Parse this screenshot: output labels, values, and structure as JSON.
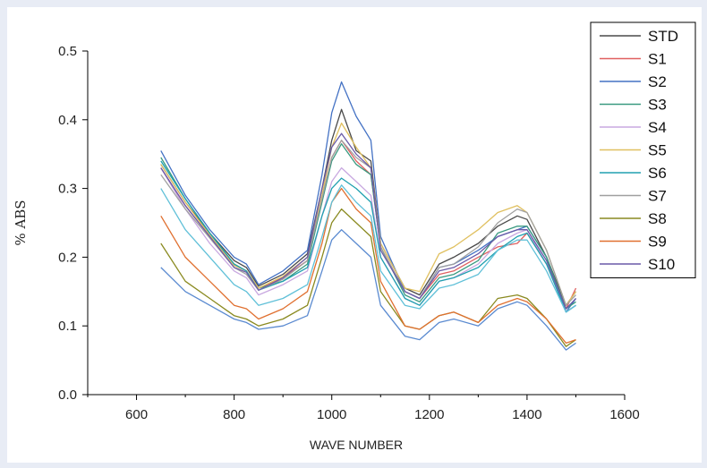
{
  "chart_data": {
    "type": "line",
    "xlabel": "WAVE NUMBER",
    "ylabel": "% ABS",
    "xlim": [
      500,
      1600
    ],
    "ylim": [
      0.0,
      0.5
    ],
    "xticks": [
      600,
      800,
      1000,
      1200,
      1400,
      1600
    ],
    "yticks": [
      "0.0",
      "0.1",
      "0.2",
      "0.3",
      "0.4",
      "0.5"
    ],
    "grid": false,
    "legend_position": "top-right",
    "x": [
      650,
      700,
      750,
      800,
      825,
      850,
      900,
      950,
      980,
      1000,
      1020,
      1050,
      1080,
      1100,
      1150,
      1180,
      1220,
      1250,
      1300,
      1340,
      1380,
      1400,
      1440,
      1480,
      1500
    ],
    "series": [
      {
        "name": "STD",
        "color": "#4a4a4a",
        "values": [
          0.335,
          0.28,
          0.235,
          0.195,
          0.185,
          0.158,
          0.175,
          0.205,
          0.3,
          0.37,
          0.415,
          0.355,
          0.34,
          0.22,
          0.155,
          0.145,
          0.19,
          0.2,
          0.22,
          0.245,
          0.26,
          0.255,
          0.2,
          0.13,
          0.15
        ]
      },
      {
        "name": "S1",
        "color": "#e06060",
        "values": [
          0.33,
          0.275,
          0.23,
          0.19,
          0.18,
          0.155,
          0.17,
          0.195,
          0.285,
          0.345,
          0.37,
          0.34,
          0.32,
          0.215,
          0.15,
          0.14,
          0.175,
          0.18,
          0.2,
          0.215,
          0.22,
          0.235,
          0.19,
          0.125,
          0.155
        ]
      },
      {
        "name": "S2",
        "color": "#4472c4",
        "values": [
          0.355,
          0.29,
          0.24,
          0.2,
          0.19,
          0.16,
          0.18,
          0.21,
          0.32,
          0.41,
          0.455,
          0.405,
          0.37,
          0.23,
          0.15,
          0.14,
          0.185,
          0.19,
          0.21,
          0.23,
          0.24,
          0.245,
          0.2,
          0.12,
          0.14
        ]
      },
      {
        "name": "S3",
        "color": "#3a9a80",
        "values": [
          0.345,
          0.285,
          0.235,
          0.19,
          0.18,
          0.155,
          0.165,
          0.19,
          0.28,
          0.34,
          0.365,
          0.335,
          0.32,
          0.215,
          0.145,
          0.135,
          0.17,
          0.175,
          0.195,
          0.235,
          0.245,
          0.245,
          0.2,
          0.125,
          0.135
        ]
      },
      {
        "name": "S4",
        "color": "#c8a8e0",
        "values": [
          0.33,
          0.27,
          0.22,
          0.18,
          0.17,
          0.145,
          0.16,
          0.18,
          0.26,
          0.31,
          0.33,
          0.31,
          0.29,
          0.2,
          0.14,
          0.13,
          0.165,
          0.17,
          0.19,
          0.22,
          0.235,
          0.24,
          0.19,
          0.12,
          0.13
        ]
      },
      {
        "name": "S5",
        "color": "#e0c060",
        "values": [
          0.335,
          0.28,
          0.232,
          0.188,
          0.18,
          0.155,
          0.172,
          0.2,
          0.29,
          0.36,
          0.395,
          0.36,
          0.33,
          0.22,
          0.155,
          0.15,
          0.205,
          0.215,
          0.24,
          0.265,
          0.275,
          0.265,
          0.21,
          0.13,
          0.15
        ]
      },
      {
        "name": "S6",
        "color": "#20a0b0",
        "values": [
          0.34,
          0.285,
          0.235,
          0.19,
          0.18,
          0.152,
          0.165,
          0.185,
          0.26,
          0.3,
          0.315,
          0.3,
          0.28,
          0.2,
          0.14,
          0.13,
          0.165,
          0.17,
          0.185,
          0.21,
          0.23,
          0.235,
          0.19,
          0.12,
          0.13
        ]
      },
      {
        "name": "S7",
        "color": "#a0a0a0",
        "values": [
          0.32,
          0.27,
          0.228,
          0.185,
          0.175,
          0.152,
          0.168,
          0.195,
          0.285,
          0.345,
          0.37,
          0.345,
          0.33,
          0.215,
          0.15,
          0.14,
          0.185,
          0.19,
          0.215,
          0.25,
          0.27,
          0.265,
          0.21,
          0.13,
          0.145
        ]
      },
      {
        "name": "S8",
        "color": "#8a8a20",
        "values": [
          0.22,
          0.165,
          0.14,
          0.115,
          0.11,
          0.1,
          0.11,
          0.13,
          0.2,
          0.25,
          0.27,
          0.25,
          0.23,
          0.15,
          0.1,
          0.095,
          0.115,
          0.12,
          0.105,
          0.14,
          0.145,
          0.14,
          0.11,
          0.07,
          0.08
        ]
      },
      {
        "name": "S9",
        "color": "#e07030",
        "values": [
          0.26,
          0.2,
          0.165,
          0.13,
          0.125,
          0.11,
          0.125,
          0.15,
          0.22,
          0.28,
          0.3,
          0.27,
          0.25,
          0.165,
          0.1,
          0.095,
          0.115,
          0.12,
          0.105,
          0.13,
          0.14,
          0.135,
          0.11,
          0.075,
          0.08
        ]
      },
      {
        "name": "S10",
        "color": "#6a5aa8",
        "values": [
          0.33,
          0.275,
          0.23,
          0.185,
          0.178,
          0.152,
          0.17,
          0.2,
          0.3,
          0.36,
          0.38,
          0.35,
          0.33,
          0.21,
          0.15,
          0.14,
          0.18,
          0.185,
          0.205,
          0.23,
          0.24,
          0.24,
          0.195,
          0.125,
          0.14
        ]
      },
      {
        "name": "",
        "color": "#5a8ad0",
        "values": [
          0.185,
          0.15,
          0.13,
          0.11,
          0.105,
          0.095,
          0.1,
          0.115,
          0.18,
          0.225,
          0.24,
          0.22,
          0.2,
          0.13,
          0.085,
          0.08,
          0.105,
          0.11,
          0.1,
          0.125,
          0.135,
          0.13,
          0.1,
          0.065,
          0.075
        ]
      },
      {
        "name": "",
        "color": "#60c0d8",
        "values": [
          0.3,
          0.24,
          0.2,
          0.16,
          0.15,
          0.13,
          0.14,
          0.16,
          0.23,
          0.28,
          0.305,
          0.28,
          0.26,
          0.18,
          0.13,
          0.125,
          0.155,
          0.16,
          0.175,
          0.21,
          0.225,
          0.225,
          0.18,
          0.12,
          0.13
        ]
      }
    ]
  }
}
